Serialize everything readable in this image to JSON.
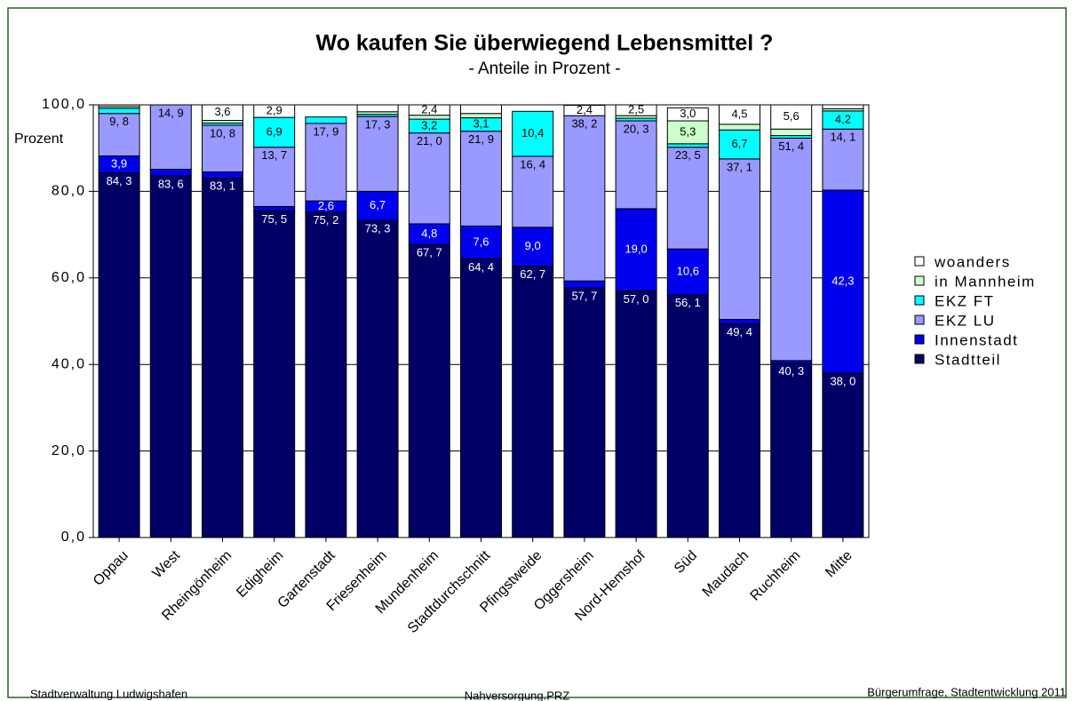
{
  "chart_data": {
    "type": "stacked_bar",
    "title": "Wo kaufen Sie überwiegend Lebensmittel ?",
    "subtitle": "- Anteile in Prozent -",
    "y_label": "Prozent",
    "footer_left": "Stadtverwaltung Ludwigshafen",
    "footer_center": "Nahversorgung.PRZ",
    "footer_right": "Bürgerumfrage, Stadtentwicklung 2011",
    "categories": [
      "Oppau",
      "West",
      "Rheingönheim",
      "Edigheim",
      "Gartenstadt",
      "Friesenheim",
      "Mundenheim",
      "Stadtdurchschnitt",
      "Pfingstweide",
      "Oggersheim",
      "Nord-Hemshof",
      "Süd",
      "Maudach",
      "Ruchheim",
      "Mitte"
    ],
    "series": [
      {
        "name": "Stadtteil",
        "color": "#000066",
        "values": [
          84.3,
          83.6,
          83.1,
          75.5,
          75.2,
          73.3,
          67.7,
          64.4,
          62.7,
          57.7,
          57.0,
          56.1,
          49.4,
          40.3,
          38.0
        ],
        "value_labels": [
          "84, 3",
          "83, 6",
          "83, 1",
          "75, 5",
          "75, 2",
          "73, 3",
          "67, 7",
          "64, 4",
          "62, 7",
          "57, 7",
          "57, 0",
          "56, 1",
          "49, 4",
          "40, 3",
          "38, 0"
        ]
      },
      {
        "name": "Innenstadt",
        "color": "#0000ee",
        "values": [
          3.9,
          1.5,
          1.4,
          1.0,
          2.6,
          6.7,
          4.8,
          7.6,
          9.0,
          1.6,
          19.0,
          10.6,
          1.0,
          0.6,
          42.3
        ],
        "value_labels": [
          "3,9",
          null,
          null,
          null,
          "2,6",
          "6,7",
          "4,8",
          "7,6",
          "9,0",
          null,
          "19,0",
          "10,6",
          null,
          null,
          "42,3"
        ]
      },
      {
        "name": "EKZ LU",
        "color": "#9999ff",
        "values": [
          9.8,
          14.9,
          10.8,
          13.7,
          17.9,
          17.3,
          21.0,
          21.9,
          16.4,
          38.2,
          20.3,
          23.5,
          37.1,
          51.4,
          14.1
        ],
        "value_labels": [
          "9, 8",
          "14, 9",
          "10, 8",
          "13, 7",
          "17, 9",
          "17, 3",
          "21, 0",
          "21, 9",
          "16, 4",
          "38, 2",
          "20, 3",
          "23, 5",
          "37, 1",
          "51, 4",
          "14, 1"
        ]
      },
      {
        "name": "EKZ FT",
        "color": "#00ffff",
        "values": [
          1.2,
          0,
          0.5,
          6.9,
          1.5,
          0.5,
          3.2,
          3.1,
          10.4,
          0,
          0.6,
          0.8,
          6.7,
          0.6,
          4.2
        ],
        "value_labels": [
          null,
          null,
          null,
          "6,9",
          null,
          null,
          "3,2",
          "3,1",
          "10,4",
          null,
          null,
          null,
          "6,7",
          null,
          "4,2"
        ]
      },
      {
        "name": "in Mannheim",
        "color": "#ccffcc",
        "values": [
          0.4,
          0,
          0.6,
          0,
          0,
          0.6,
          0.9,
          1.0,
          0,
          0,
          0.6,
          5.3,
          1.3,
          1.5,
          0.5
        ],
        "value_labels": [
          null,
          null,
          null,
          null,
          null,
          null,
          null,
          null,
          null,
          null,
          null,
          "5,3",
          null,
          null,
          null
        ]
      },
      {
        "name": "woanders",
        "color": "#ffffff",
        "values": [
          0.4,
          0,
          3.6,
          2.9,
          0,
          1.6,
          2.4,
          2.0,
          0,
          2.4,
          2.5,
          3.0,
          4.5,
          5.6,
          0.9
        ],
        "value_labels": [
          null,
          null,
          "3,6",
          "2,9",
          null,
          null,
          "2,4",
          null,
          null,
          "2,4",
          "2,5",
          "3,0",
          "4,5",
          "5,6",
          null
        ]
      }
    ],
    "ylim": [
      0,
      100
    ],
    "yticks": [
      {
        "value": 0,
        "label": "0,0"
      },
      {
        "value": 20,
        "label": "20,0"
      },
      {
        "value": 40,
        "label": "40,0"
      },
      {
        "value": 60,
        "label": "60,0"
      },
      {
        "value": 80,
        "label": "80,0"
      },
      {
        "value": 100,
        "label": "100,0"
      }
    ],
    "grid": true
  }
}
